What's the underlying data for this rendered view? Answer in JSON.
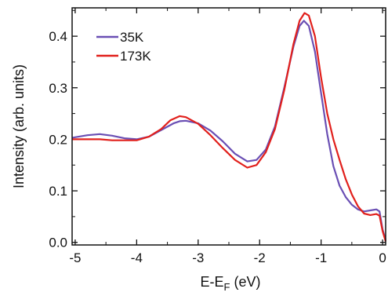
{
  "chart_data": {
    "type": "line",
    "title": "",
    "xlabel_main": "E-E",
    "xlabel_sub": "F",
    "xlabel_unit": " (eV)",
    "ylabel": "Intensity (arb. units)",
    "xlim": [
      -5.05,
      0.05
    ],
    "ylim": [
      -0.005,
      0.455
    ],
    "x_ticks": [
      -5,
      -4,
      -3,
      -2,
      -1,
      0
    ],
    "x_tick_labels": [
      "-5",
      "-4",
      "-3",
      "-2",
      "-1",
      "0"
    ],
    "y_ticks": [
      0.0,
      0.1,
      0.2,
      0.3,
      0.4
    ],
    "y_tick_labels": [
      "0.0",
      "0.1",
      "0.2",
      "0.3",
      "0.4"
    ],
    "legend_position": "top-left",
    "grid": false,
    "series": [
      {
        "name": "35K",
        "color": "#6a4fb4",
        "points": [
          [
            -5.05,
            0.203
          ],
          [
            -4.8,
            0.208
          ],
          [
            -4.6,
            0.21
          ],
          [
            -4.4,
            0.207
          ],
          [
            -4.2,
            0.202
          ],
          [
            -4.0,
            0.2
          ],
          [
            -3.8,
            0.205
          ],
          [
            -3.6,
            0.218
          ],
          [
            -3.4,
            0.231
          ],
          [
            -3.3,
            0.235
          ],
          [
            -3.2,
            0.236
          ],
          [
            -3.0,
            0.231
          ],
          [
            -2.8,
            0.217
          ],
          [
            -2.6,
            0.196
          ],
          [
            -2.4,
            0.172
          ],
          [
            -2.2,
            0.157
          ],
          [
            -2.05,
            0.16
          ],
          [
            -1.9,
            0.18
          ],
          [
            -1.75,
            0.225
          ],
          [
            -1.6,
            0.3
          ],
          [
            -1.45,
            0.38
          ],
          [
            -1.35,
            0.42
          ],
          [
            -1.28,
            0.43
          ],
          [
            -1.2,
            0.42
          ],
          [
            -1.1,
            0.37
          ],
          [
            -1.0,
            0.29
          ],
          [
            -0.9,
            0.21
          ],
          [
            -0.8,
            0.148
          ],
          [
            -0.7,
            0.11
          ],
          [
            -0.6,
            0.088
          ],
          [
            -0.5,
            0.073
          ],
          [
            -0.4,
            0.064
          ],
          [
            -0.3,
            0.06
          ],
          [
            -0.2,
            0.062
          ],
          [
            -0.1,
            0.064
          ],
          [
            -0.05,
            0.06
          ],
          [
            0.0,
            0.025
          ],
          [
            0.05,
            0.005
          ]
        ]
      },
      {
        "name": "173K",
        "color": "#e1201c",
        "points": [
          [
            -5.05,
            0.2
          ],
          [
            -4.8,
            0.2
          ],
          [
            -4.6,
            0.2
          ],
          [
            -4.4,
            0.198
          ],
          [
            -4.2,
            0.198
          ],
          [
            -4.0,
            0.198
          ],
          [
            -3.8,
            0.205
          ],
          [
            -3.6,
            0.22
          ],
          [
            -3.45,
            0.237
          ],
          [
            -3.3,
            0.245
          ],
          [
            -3.2,
            0.243
          ],
          [
            -3.0,
            0.23
          ],
          [
            -2.8,
            0.208
          ],
          [
            -2.6,
            0.183
          ],
          [
            -2.4,
            0.16
          ],
          [
            -2.2,
            0.145
          ],
          [
            -2.05,
            0.15
          ],
          [
            -1.9,
            0.175
          ],
          [
            -1.75,
            0.22
          ],
          [
            -1.6,
            0.295
          ],
          [
            -1.45,
            0.385
          ],
          [
            -1.35,
            0.43
          ],
          [
            -1.27,
            0.445
          ],
          [
            -1.2,
            0.44
          ],
          [
            -1.1,
            0.4
          ],
          [
            -1.0,
            0.32
          ],
          [
            -0.9,
            0.25
          ],
          [
            -0.8,
            0.2
          ],
          [
            -0.7,
            0.16
          ],
          [
            -0.6,
            0.123
          ],
          [
            -0.5,
            0.093
          ],
          [
            -0.4,
            0.07
          ],
          [
            -0.3,
            0.056
          ],
          [
            -0.2,
            0.053
          ],
          [
            -0.1,
            0.055
          ],
          [
            -0.05,
            0.052
          ],
          [
            0.0,
            0.022
          ],
          [
            0.05,
            0.002
          ]
        ]
      }
    ]
  }
}
